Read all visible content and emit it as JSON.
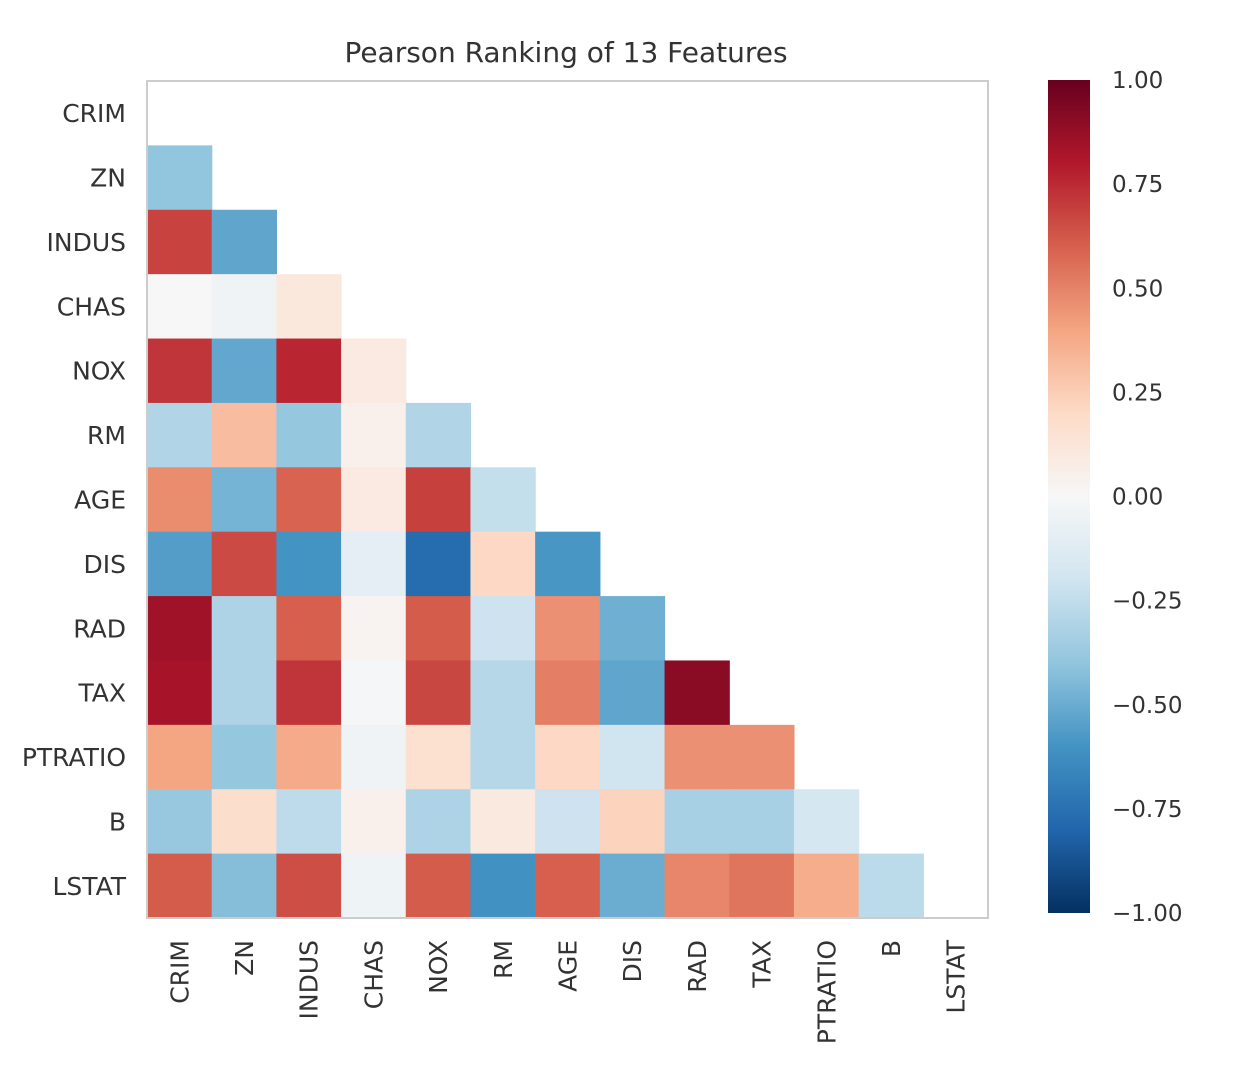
{
  "chart_data": {
    "type": "heatmap",
    "title": "Pearson Ranking of 13 Features",
    "xlabel": "",
    "ylabel": "",
    "features": [
      "CRIM",
      "ZN",
      "INDUS",
      "CHAS",
      "NOX",
      "RM",
      "AGE",
      "DIS",
      "RAD",
      "TAX",
      "PTRATIO",
      "B",
      "LSTAT"
    ],
    "mask": "upper-triangle-including-diagonal",
    "values": [
      [
        null,
        null,
        null,
        null,
        null,
        null,
        null,
        null,
        null,
        null,
        null,
        null,
        null
      ],
      [
        -0.4,
        null,
        null,
        null,
        null,
        null,
        null,
        null,
        null,
        null,
        null,
        null,
        null
      ],
      [
        0.68,
        -0.53,
        null,
        null,
        null,
        null,
        null,
        null,
        null,
        null,
        null,
        null,
        null
      ],
      [
        0.0,
        -0.04,
        0.11,
        null,
        null,
        null,
        null,
        null,
        null,
        null,
        null,
        null,
        null
      ],
      [
        0.72,
        -0.52,
        0.76,
        0.09,
        null,
        null,
        null,
        null,
        null,
        null,
        null,
        null,
        null
      ],
      [
        -0.3,
        0.31,
        -0.39,
        0.05,
        -0.3,
        null,
        null,
        null,
        null,
        null,
        null,
        null,
        null
      ],
      [
        0.47,
        -0.47,
        0.59,
        0.09,
        0.69,
        -0.24,
        null,
        null,
        null,
        null,
        null,
        null,
        null
      ],
      [
        -0.56,
        0.66,
        -0.6,
        -0.1,
        -0.77,
        0.21,
        -0.59,
        null,
        null,
        null,
        null,
        null,
        null
      ],
      [
        0.85,
        -0.31,
        0.6,
        0.03,
        0.61,
        -0.21,
        0.46,
        -0.49,
        null,
        null,
        null,
        null,
        null
      ],
      [
        0.83,
        -0.31,
        0.72,
        -0.01,
        0.67,
        -0.29,
        0.51,
        -0.53,
        0.91,
        null,
        null,
        null,
        null
      ],
      [
        0.4,
        -0.39,
        0.38,
        -0.04,
        0.16,
        -0.29,
        0.21,
        -0.2,
        0.46,
        0.46,
        null,
        null,
        null
      ],
      [
        -0.38,
        0.18,
        -0.26,
        0.05,
        -0.31,
        0.1,
        -0.21,
        0.23,
        -0.33,
        -0.33,
        -0.18,
        null,
        null
      ],
      [
        0.61,
        -0.43,
        0.65,
        -0.05,
        0.61,
        -0.61,
        0.6,
        -0.5,
        0.49,
        0.54,
        0.37,
        -0.27,
        null
      ]
    ],
    "vmin": -1.0,
    "vmax": 1.0,
    "colormap": "RdBu_r",
    "colorbar": {
      "ticks": [
        1.0,
        0.75,
        0.5,
        0.25,
        0.0,
        -0.25,
        -0.5,
        -0.75,
        -1.0
      ],
      "tick_labels": [
        "1.00",
        "0.75",
        "0.50",
        "0.25",
        "0.00",
        "−0.25",
        "−0.50",
        "−0.75",
        "−1.00"
      ]
    },
    "grid": false,
    "colors": {
      "high": "#67001f",
      "low": "#053061",
      "mid": "#f7f7f7",
      "frame": "#cccccc",
      "text": "#333333"
    }
  }
}
